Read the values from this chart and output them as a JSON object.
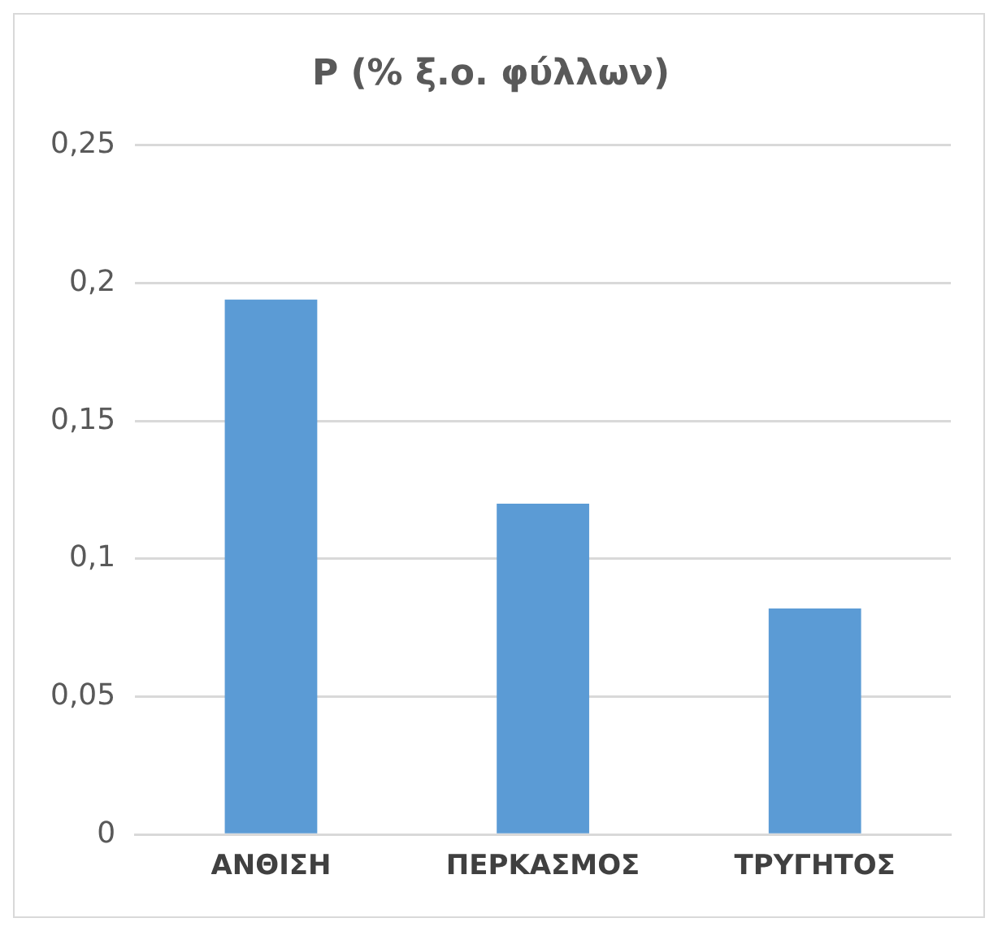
{
  "chart_data": {
    "type": "bar",
    "title": "P (% ξ.ο. φύλλων)",
    "categories": [
      "ΑΝΘΙΣΗ",
      "ΠΕΡΚΑΣΜΟΣ",
      "ΤΡΥΓΗΤΟΣ"
    ],
    "values": [
      0.194,
      0.12,
      0.082
    ],
    "color": "#5b9bd5",
    "ylim": [
      0,
      0.25
    ],
    "yticks": [
      0,
      {
        "value": 0.05,
        "label": "0,05"
      },
      {
        "value": 0.1,
        "label": "0,1"
      },
      {
        "value": 0.15,
        "label": "0,15"
      },
      {
        "value": 0.2,
        "label": "0,2"
      },
      {
        "value": 0.25,
        "label": "0,25"
      }
    ],
    "grid": "y"
  }
}
